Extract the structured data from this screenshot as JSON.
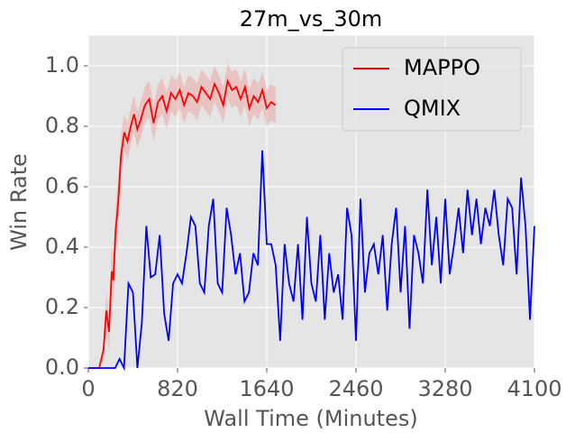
{
  "chart_data": {
    "type": "line",
    "title": "27m_vs_30m",
    "x_label": "Wall Time (Minutes)",
    "y_label": "Win Rate",
    "xlim": [
      0,
      4100
    ],
    "ylim": [
      0,
      1.1
    ],
    "xticks": [
      0,
      820,
      1640,
      2460,
      3280,
      4100
    ],
    "yticks": [
      {
        "value": 0,
        "label": "0.0"
      },
      0.2,
      0.4,
      0.6,
      0.8,
      {
        "value": 1,
        "label": "1.0"
      }
    ],
    "grid": true,
    "legend": "upper right",
    "series": [
      {
        "name": "MAPPO",
        "color": "#ff0000",
        "band_color": "#f08080",
        "x": [
          0,
          100,
          140,
          165,
          190,
          215,
          230,
          250,
          275,
          300,
          330,
          360,
          390,
          420,
          450,
          480,
          520,
          560,
          600,
          640,
          680,
          720,
          760,
          800,
          840,
          880,
          920,
          960,
          1000,
          1040,
          1080,
          1120,
          1160,
          1200,
          1240,
          1280,
          1320,
          1360,
          1400,
          1440,
          1480,
          1520,
          1560,
          1600,
          1640,
          1680,
          1720
        ],
        "values": [
          0,
          0,
          0.06,
          0.19,
          0.12,
          0.32,
          0.29,
          0.45,
          0.55,
          0.7,
          0.78,
          0.75,
          0.8,
          0.84,
          0.79,
          0.82,
          0.87,
          0.89,
          0.81,
          0.88,
          0.9,
          0.85,
          0.91,
          0.89,
          0.92,
          0.87,
          0.91,
          0.9,
          0.88,
          0.93,
          0.91,
          0.89,
          0.94,
          0.91,
          0.87,
          0.95,
          0.92,
          0.93,
          0.89,
          0.93,
          0.86,
          0.9,
          0.88,
          0.92,
          0.86,
          0.88,
          0.87
        ],
        "error": [
          0,
          0,
          0.03,
          0.06,
          0.06,
          0.08,
          0.08,
          0.08,
          0.08,
          0.07,
          0.06,
          0.06,
          0.06,
          0.06,
          0.06,
          0.06,
          0.06,
          0.06,
          0.06,
          0.06,
          0.06,
          0.06,
          0.06,
          0.06,
          0.06,
          0.06,
          0.06,
          0.06,
          0.06,
          0.06,
          0.06,
          0.06,
          0.06,
          0.06,
          0.06,
          0.06,
          0.06,
          0.06,
          0.06,
          0.06,
          0.06,
          0.06,
          0.06,
          0.06,
          0.06,
          0.06,
          0.06
        ]
      },
      {
        "name": "QMIX",
        "color": "#0000ff",
        "x": [
          0,
          41,
          82,
          123,
          164,
          205,
          246,
          287,
          328,
          369,
          410,
          451,
          492,
          533,
          574,
          615,
          656,
          697,
          738,
          779,
          820,
          861,
          902,
          943,
          984,
          1025,
          1066,
          1107,
          1148,
          1189,
          1230,
          1271,
          1312,
          1353,
          1394,
          1435,
          1476,
          1517,
          1558,
          1599,
          1640,
          1681,
          1722,
          1763,
          1804,
          1845,
          1886,
          1927,
          1968,
          2009,
          2050,
          2091,
          2132,
          2173,
          2214,
          2255,
          2296,
          2337,
          2378,
          2419,
          2460,
          2501,
          2542,
          2583,
          2624,
          2665,
          2706,
          2747,
          2788,
          2829,
          2870,
          2911,
          2952,
          2993,
          3034,
          3075,
          3116,
          3157,
          3198,
          3239,
          3280,
          3321,
          3362,
          3403,
          3444,
          3485,
          3526,
          3567,
          3608,
          3649,
          3690,
          3731,
          3772,
          3813,
          3854,
          3895,
          3936,
          3977,
          4018,
          4059,
          4100
        ],
        "values": [
          0,
          0,
          0,
          0,
          0,
          0,
          0,
          0.03,
          0,
          0.28,
          0.25,
          0,
          0.15,
          0.47,
          0.3,
          0.31,
          0.44,
          0.18,
          0.09,
          0.28,
          0.31,
          0.28,
          0.38,
          0.5,
          0.47,
          0.28,
          0.25,
          0.47,
          0.56,
          0.28,
          0.25,
          0.53,
          0.44,
          0.31,
          0.38,
          0.22,
          0.25,
          0.38,
          0.34,
          0.72,
          0.41,
          0.41,
          0.34,
          0.09,
          0.41,
          0.28,
          0.22,
          0.41,
          0.16,
          0.5,
          0.28,
          0.22,
          0.44,
          0.16,
          0.38,
          0.25,
          0.31,
          0.16,
          0.53,
          0.44,
          0.09,
          0.56,
          0.25,
          0.38,
          0.41,
          0.31,
          0.44,
          0.19,
          0.41,
          0.53,
          0.25,
          0.47,
          0.13,
          0.44,
          0.38,
          0.28,
          0.59,
          0.34,
          0.5,
          0.28,
          0.56,
          0.31,
          0.41,
          0.53,
          0.38,
          0.59,
          0.44,
          0.56,
          0.41,
          0.53,
          0.47,
          0.59,
          0.44,
          0.34,
          0.56,
          0.53,
          0.31,
          0.63,
          0.47,
          0.16,
          0.47
        ]
      }
    ]
  }
}
